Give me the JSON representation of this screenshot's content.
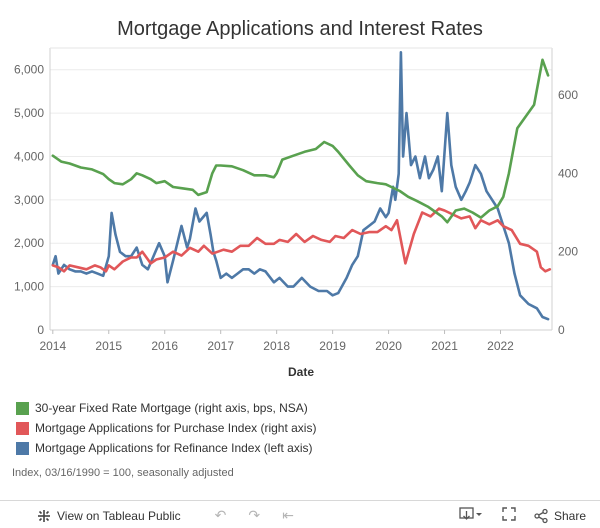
{
  "title": "Mortgage Applications and Interest Rates",
  "note": "Index, 03/16/1990 = 100, seasonally adjusted",
  "legend": [
    {
      "label": "30-year Fixed Rate Mortgage (right axis, bps, NSA)",
      "color": "#59a14f"
    },
    {
      "label": "Mortgage Applications for Purchase Index (right axis)",
      "color": "#e15759"
    },
    {
      "label": "Mortgage Applications for Refinance Index (left axis)",
      "color": "#4e79a7"
    }
  ],
  "toolbar": {
    "view_label": "View on Tableau Public",
    "share_label": "Share"
  },
  "chart_data": {
    "type": "line",
    "title": "Mortgage Applications and Interest Rates",
    "xlabel": "Date",
    "x_ticks": [
      "2014",
      "2015",
      "2016",
      "2017",
      "2018",
      "2019",
      "2020",
      "2021",
      "2022"
    ],
    "xlim": [
      2013.95,
      2022.92
    ],
    "left_axis": {
      "ticks": [
        "0",
        "1,000",
        "2,000",
        "3,000",
        "4,000",
        "5,000",
        "6,000"
      ],
      "range": [
        0,
        6500
      ]
    },
    "right_axis": {
      "ticks": [
        "0",
        "200",
        "400",
        "600"
      ],
      "range": [
        0,
        720
      ]
    },
    "series": [
      {
        "name": "30-year Fixed Rate Mortgage (right axis, bps, NSA)",
        "axis": "right",
        "color": "#59a14f",
        "points": [
          [
            2014.0,
            445
          ],
          [
            2014.15,
            430
          ],
          [
            2014.3,
            425
          ],
          [
            2014.5,
            415
          ],
          [
            2014.7,
            410
          ],
          [
            2014.9,
            398
          ],
          [
            2015.0,
            385
          ],
          [
            2015.1,
            375
          ],
          [
            2015.25,
            372
          ],
          [
            2015.4,
            385
          ],
          [
            2015.5,
            400
          ],
          [
            2015.6,
            395
          ],
          [
            2015.75,
            385
          ],
          [
            2015.85,
            375
          ],
          [
            2016.0,
            380
          ],
          [
            2016.15,
            365
          ],
          [
            2016.3,
            362
          ],
          [
            2016.5,
            358
          ],
          [
            2016.6,
            345
          ],
          [
            2016.75,
            352
          ],
          [
            2016.85,
            400
          ],
          [
            2016.92,
            420
          ],
          [
            2017.0,
            420
          ],
          [
            2017.2,
            418
          ],
          [
            2017.4,
            408
          ],
          [
            2017.6,
            395
          ],
          [
            2017.8,
            395
          ],
          [
            2017.95,
            390
          ],
          [
            2018.0,
            400
          ],
          [
            2018.1,
            435
          ],
          [
            2018.3,
            445
          ],
          [
            2018.5,
            455
          ],
          [
            2018.7,
            462
          ],
          [
            2018.85,
            480
          ],
          [
            2019.0,
            470
          ],
          [
            2019.1,
            455
          ],
          [
            2019.3,
            420
          ],
          [
            2019.45,
            395
          ],
          [
            2019.6,
            380
          ],
          [
            2019.8,
            375
          ],
          [
            2019.95,
            372
          ],
          [
            2020.05,
            365
          ],
          [
            2020.2,
            355
          ],
          [
            2020.35,
            340
          ],
          [
            2020.5,
            330
          ],
          [
            2020.7,
            315
          ],
          [
            2020.85,
            300
          ],
          [
            2020.95,
            290
          ],
          [
            2021.05,
            275
          ],
          [
            2021.2,
            305
          ],
          [
            2021.35,
            310
          ],
          [
            2021.5,
            300
          ],
          [
            2021.65,
            287
          ],
          [
            2021.8,
            305
          ],
          [
            2021.95,
            316
          ],
          [
            2022.05,
            340
          ],
          [
            2022.15,
            400
          ],
          [
            2022.3,
            515
          ],
          [
            2022.45,
            545
          ],
          [
            2022.6,
            575
          ],
          [
            2022.75,
            690
          ],
          [
            2022.85,
            650
          ]
        ]
      },
      {
        "name": "Mortgage Applications for Purchase Index (right axis)",
        "axis": "right",
        "color": "#e15759",
        "points": [
          [
            2014.0,
            165
          ],
          [
            2014.1,
            160
          ],
          [
            2014.2,
            150
          ],
          [
            2014.3,
            165
          ],
          [
            2014.45,
            160
          ],
          [
            2014.6,
            155
          ],
          [
            2014.75,
            165
          ],
          [
            2014.85,
            160
          ],
          [
            2014.95,
            150
          ],
          [
            2015.0,
            165
          ],
          [
            2015.1,
            155
          ],
          [
            2015.25,
            175
          ],
          [
            2015.4,
            185
          ],
          [
            2015.5,
            185
          ],
          [
            2015.6,
            200
          ],
          [
            2015.75,
            170
          ],
          [
            2015.85,
            180
          ],
          [
            2016.0,
            185
          ],
          [
            2016.15,
            200
          ],
          [
            2016.3,
            190
          ],
          [
            2016.45,
            210
          ],
          [
            2016.6,
            200
          ],
          [
            2016.7,
            215
          ],
          [
            2016.85,
            195
          ],
          [
            2016.95,
            200
          ],
          [
            2017.05,
            205
          ],
          [
            2017.2,
            200
          ],
          [
            2017.35,
            215
          ],
          [
            2017.5,
            215
          ],
          [
            2017.65,
            235
          ],
          [
            2017.8,
            220
          ],
          [
            2017.95,
            220
          ],
          [
            2018.05,
            230
          ],
          [
            2018.2,
            225
          ],
          [
            2018.35,
            245
          ],
          [
            2018.5,
            225
          ],
          [
            2018.65,
            240
          ],
          [
            2018.8,
            230
          ],
          [
            2018.95,
            225
          ],
          [
            2019.05,
            240
          ],
          [
            2019.2,
            235
          ],
          [
            2019.35,
            255
          ],
          [
            2019.5,
            245
          ],
          [
            2019.65,
            250
          ],
          [
            2019.8,
            250
          ],
          [
            2019.95,
            265
          ],
          [
            2020.05,
            255
          ],
          [
            2020.15,
            280
          ],
          [
            2020.3,
            170
          ],
          [
            2020.45,
            245
          ],
          [
            2020.6,
            300
          ],
          [
            2020.75,
            290
          ],
          [
            2020.9,
            310
          ],
          [
            2021.0,
            305
          ],
          [
            2021.15,
            295
          ],
          [
            2021.3,
            285
          ],
          [
            2021.45,
            290
          ],
          [
            2021.55,
            260
          ],
          [
            2021.65,
            280
          ],
          [
            2021.8,
            270
          ],
          [
            2021.95,
            280
          ],
          [
            2022.05,
            265
          ],
          [
            2022.2,
            255
          ],
          [
            2022.35,
            220
          ],
          [
            2022.5,
            215
          ],
          [
            2022.65,
            200
          ],
          [
            2022.72,
            160
          ],
          [
            2022.8,
            150
          ],
          [
            2022.88,
            155
          ]
        ]
      },
      {
        "name": "Mortgage Applications for Refinance Index (left axis)",
        "axis": "left",
        "color": "#4e79a7",
        "points": [
          [
            2014.0,
            1500
          ],
          [
            2014.05,
            1700
          ],
          [
            2014.1,
            1300
          ],
          [
            2014.2,
            1500
          ],
          [
            2014.3,
            1400
          ],
          [
            2014.4,
            1350
          ],
          [
            2014.5,
            1350
          ],
          [
            2014.6,
            1300
          ],
          [
            2014.7,
            1350
          ],
          [
            2014.8,
            1300
          ],
          [
            2014.9,
            1250
          ],
          [
            2015.0,
            1700
          ],
          [
            2015.05,
            2700
          ],
          [
            2015.12,
            2200
          ],
          [
            2015.2,
            1800
          ],
          [
            2015.3,
            1700
          ],
          [
            2015.4,
            1700
          ],
          [
            2015.5,
            1900
          ],
          [
            2015.6,
            1500
          ],
          [
            2015.7,
            1400
          ],
          [
            2015.8,
            1700
          ],
          [
            2015.9,
            2000
          ],
          [
            2016.0,
            1700
          ],
          [
            2016.05,
            1100
          ],
          [
            2016.15,
            1600
          ],
          [
            2016.3,
            2400
          ],
          [
            2016.4,
            1900
          ],
          [
            2016.45,
            2100
          ],
          [
            2016.55,
            2800
          ],
          [
            2016.62,
            2500
          ],
          [
            2016.75,
            2700
          ],
          [
            2016.82,
            2200
          ],
          [
            2016.87,
            1800
          ],
          [
            2016.92,
            1600
          ],
          [
            2017.0,
            1200
          ],
          [
            2017.1,
            1300
          ],
          [
            2017.2,
            1200
          ],
          [
            2017.3,
            1300
          ],
          [
            2017.4,
            1400
          ],
          [
            2017.5,
            1400
          ],
          [
            2017.6,
            1300
          ],
          [
            2017.7,
            1400
          ],
          [
            2017.8,
            1350
          ],
          [
            2017.95,
            1100
          ],
          [
            2018.05,
            1200
          ],
          [
            2018.2,
            1000
          ],
          [
            2018.3,
            1000
          ],
          [
            2018.45,
            1200
          ],
          [
            2018.6,
            1000
          ],
          [
            2018.75,
            900
          ],
          [
            2018.9,
            900
          ],
          [
            2019.0,
            800
          ],
          [
            2019.1,
            850
          ],
          [
            2019.25,
            1200
          ],
          [
            2019.35,
            1500
          ],
          [
            2019.45,
            1700
          ],
          [
            2019.55,
            2300
          ],
          [
            2019.65,
            2400
          ],
          [
            2019.75,
            2500
          ],
          [
            2019.85,
            2800
          ],
          [
            2019.95,
            2600
          ],
          [
            2020.0,
            2700
          ],
          [
            2020.08,
            3300
          ],
          [
            2020.12,
            3000
          ],
          [
            2020.18,
            3600
          ],
          [
            2020.22,
            6400
          ],
          [
            2020.26,
            4000
          ],
          [
            2020.32,
            5000
          ],
          [
            2020.4,
            3800
          ],
          [
            2020.48,
            4000
          ],
          [
            2020.56,
            3500
          ],
          [
            2020.65,
            4000
          ],
          [
            2020.72,
            3500
          ],
          [
            2020.8,
            3700
          ],
          [
            2020.88,
            4000
          ],
          [
            2020.95,
            3200
          ],
          [
            2021.05,
            5000
          ],
          [
            2021.12,
            3800
          ],
          [
            2021.2,
            3300
          ],
          [
            2021.3,
            3000
          ],
          [
            2021.38,
            3200
          ],
          [
            2021.45,
            3400
          ],
          [
            2021.55,
            3800
          ],
          [
            2021.65,
            3600
          ],
          [
            2021.75,
            3200
          ],
          [
            2021.85,
            3000
          ],
          [
            2021.95,
            2800
          ],
          [
            2022.05,
            2400
          ],
          [
            2022.15,
            2000
          ],
          [
            2022.25,
            1300
          ],
          [
            2022.35,
            800
          ],
          [
            2022.5,
            600
          ],
          [
            2022.65,
            500
          ],
          [
            2022.75,
            300
          ],
          [
            2022.85,
            250
          ]
        ]
      }
    ]
  }
}
